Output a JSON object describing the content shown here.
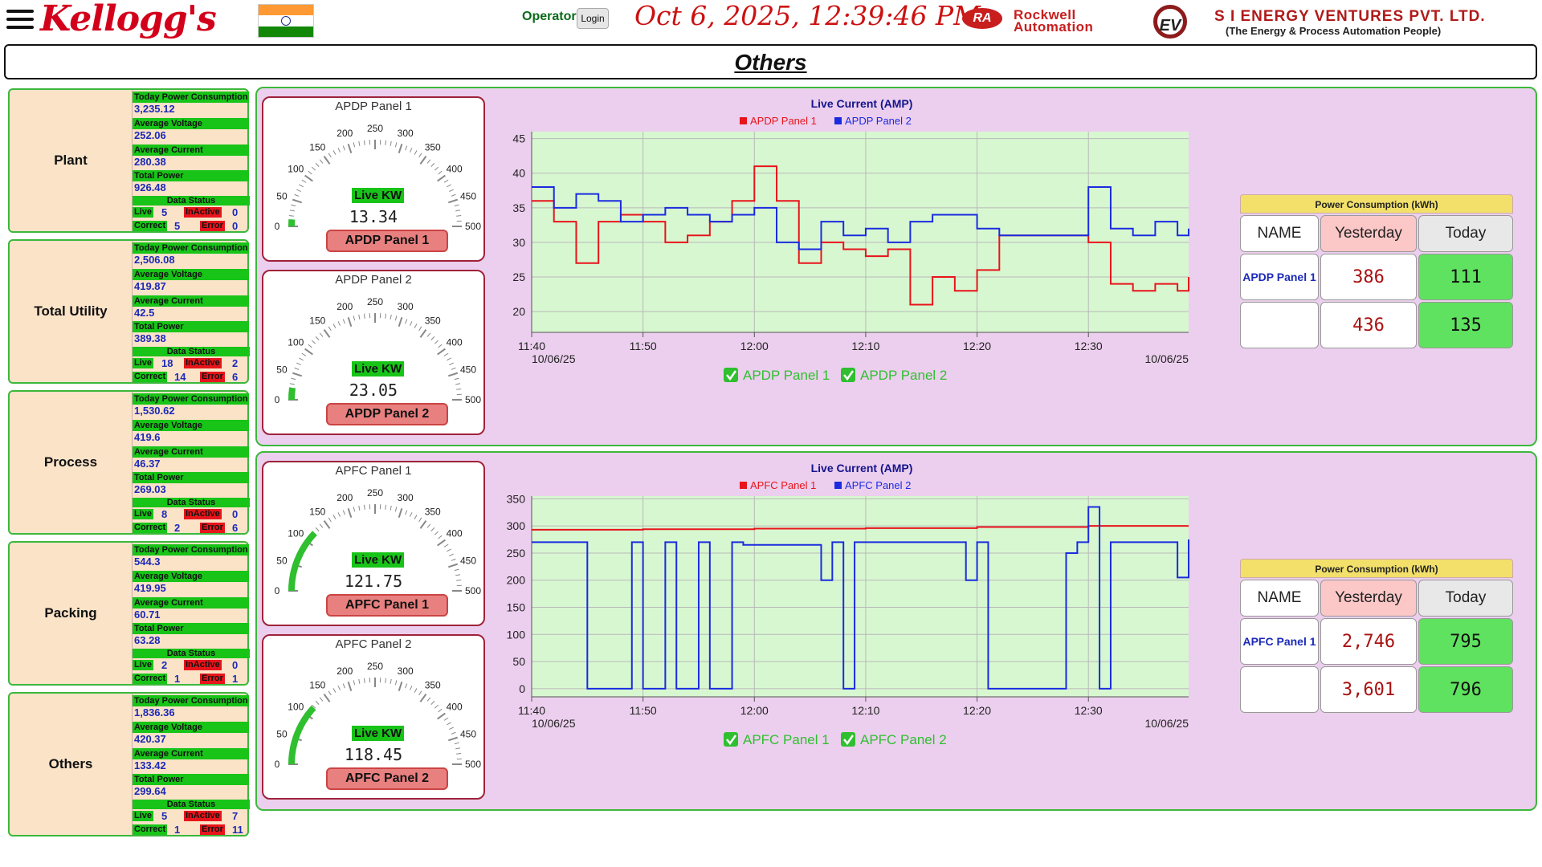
{
  "header": {
    "brand": "Kellogg's",
    "operator_label": "Operator",
    "login_label": "Login",
    "datetime": "Oct 6, 2025, 12:39:46 PM",
    "partner1_top": "Rockwell",
    "partner1_bottom": "Automation",
    "partner1_mark": "RA",
    "partner2_mark": "EV",
    "partner2_name": "S I ENERGY VENTURES PVT. LTD.",
    "partner2_tagline": "(The Energy & Process Automation People)"
  },
  "page_title": "Others",
  "summary_labels": {
    "consumption": "Today Power Consumption",
    "voltage": "Average Voltage",
    "current": "Average Current",
    "power": "Total Power",
    "status": "Data Status",
    "live": "Live",
    "inactive": "InActive",
    "correct": "Correct",
    "error": "Error"
  },
  "cards": [
    {
      "name": "Plant",
      "consumption": "3,235.12",
      "voltage": "252.06",
      "current": "280.38",
      "power": "926.48",
      "live": "5",
      "inactive": "0",
      "correct": "5",
      "error": "0"
    },
    {
      "name": "Total Utility",
      "consumption": "2,506.08",
      "voltage": "419.87",
      "current": "42.5",
      "power": "389.38",
      "live": "18",
      "inactive": "2",
      "correct": "14",
      "error": "6"
    },
    {
      "name": "Process",
      "consumption": "1,530.62",
      "voltage": "419.6",
      "current": "46.37",
      "power": "269.03",
      "live": "8",
      "inactive": "0",
      "correct": "2",
      "error": "6"
    },
    {
      "name": "Packing",
      "consumption": "544.3",
      "voltage": "419.95",
      "current": "60.71",
      "power": "63.28",
      "live": "2",
      "inactive": "0",
      "correct": "1",
      "error": "1"
    },
    {
      "name": "Others",
      "consumption": "1,836.36",
      "voltage": "420.37",
      "current": "133.42",
      "power": "299.64",
      "live": "5",
      "inactive": "7",
      "correct": "1",
      "error": "11"
    }
  ],
  "gauge_common": {
    "live_label": "Live KW",
    "ticks": [
      "0",
      "50",
      "100",
      "150",
      "200",
      "250",
      "300",
      "350",
      "400",
      "450",
      "500"
    ],
    "max": 500
  },
  "panels": [
    {
      "gauges": [
        {
          "title": "APDP Panel 1",
          "value": "13.34",
          "button": "APDP Panel 1"
        },
        {
          "title": "APDP Panel 2",
          "value": "23.05",
          "button": "APDP Panel 2"
        }
      ],
      "table": {
        "header": "Power Consumption (kWh)",
        "col_name": "NAME",
        "col_yesterday": "Yesterday",
        "col_today": "Today",
        "rows": [
          {
            "name": "APDP Panel 1",
            "yesterday": "386",
            "today": "111"
          },
          {
            "name": "",
            "yesterday": "436",
            "today": "135"
          }
        ]
      }
    },
    {
      "gauges": [
        {
          "title": "APFC Panel 1",
          "value": "121.75",
          "button": "APFC Panel 1"
        },
        {
          "title": "APFC Panel 2",
          "value": "118.45",
          "button": "APFC Panel 2"
        }
      ],
      "table": {
        "header": "Power Consumption (kWh)",
        "col_name": "NAME",
        "col_yesterday": "Yesterday",
        "col_today": "Today",
        "rows": [
          {
            "name": "APFC Panel 1",
            "yesterday": "2,746",
            "today": "795"
          },
          {
            "name": "",
            "yesterday": "3,601",
            "today": "796"
          }
        ]
      }
    }
  ],
  "chart_data": [
    {
      "type": "line",
      "title": "Live Current (AMP)",
      "x_ticks": [
        "11:40",
        "11:50",
        "12:00",
        "12:10",
        "12:20",
        "12:30"
      ],
      "x_date_left": "10/06/25",
      "x_date_right": "10/06/25",
      "xlim": [
        "11:40",
        "12:39"
      ],
      "ylim": [
        17,
        46
      ],
      "y_ticks": [
        20,
        25,
        30,
        35,
        40,
        45
      ],
      "grid": true,
      "legend": "top",
      "series": [
        {
          "name": "APDP Panel 1",
          "color": "#e8141b",
          "x": [
            "11:40",
            "11:42",
            "11:44",
            "11:46",
            "11:48",
            "11:50",
            "11:52",
            "11:54",
            "11:56",
            "11:58",
            "12:00",
            "12:02",
            "12:04",
            "12:06",
            "12:08",
            "12:10",
            "12:12",
            "12:14",
            "12:16",
            "12:18",
            "12:20",
            "12:22",
            "12:30",
            "12:32",
            "12:34",
            "12:36",
            "12:38",
            "12:39"
          ],
          "values": [
            36,
            33,
            27,
            33,
            34,
            33,
            30,
            31,
            33,
            36,
            41,
            36,
            27,
            30,
            29,
            28,
            29,
            21,
            25,
            23,
            26,
            31,
            30,
            24,
            23,
            24,
            23,
            25
          ]
        },
        {
          "name": "APDP Panel 2",
          "color": "#1a2be0",
          "x": [
            "11:40",
            "11:42",
            "11:44",
            "11:46",
            "11:48",
            "11:50",
            "11:52",
            "11:54",
            "11:56",
            "11:58",
            "12:00",
            "12:02",
            "12:04",
            "12:06",
            "12:08",
            "12:10",
            "12:12",
            "12:14",
            "12:16",
            "12:18",
            "12:20",
            "12:22",
            "12:30",
            "12:32",
            "12:34",
            "12:36",
            "12:38",
            "12:39"
          ],
          "values": [
            38,
            35,
            37,
            36,
            33,
            34,
            35,
            34,
            33,
            34,
            35,
            30,
            29,
            33,
            31,
            32,
            30,
            33,
            34,
            34,
            32,
            31,
            38,
            32,
            31,
            33,
            31,
            32
          ]
        }
      ],
      "checkboxes": [
        "APDP Panel 1",
        "APDP Panel 2"
      ]
    },
    {
      "type": "line",
      "title": "Live Current (AMP)",
      "x_ticks": [
        "11:40",
        "11:50",
        "12:00",
        "12:10",
        "12:20",
        "12:30"
      ],
      "x_date_left": "10/06/25",
      "x_date_right": "10/06/25",
      "xlim": [
        "11:40",
        "12:39"
      ],
      "ylim": [
        -15,
        355
      ],
      "y_ticks": [
        0,
        50,
        100,
        150,
        200,
        250,
        300,
        350
      ],
      "grid": true,
      "legend": "top",
      "series": [
        {
          "name": "APFC Panel 1",
          "color": "#e8141b",
          "x": [
            "11:40",
            "11:50",
            "12:00",
            "12:10",
            "12:20",
            "12:30",
            "12:39"
          ],
          "values": [
            293,
            294,
            295,
            296,
            298,
            300,
            300
          ]
        },
        {
          "name": "APFC Panel 2",
          "color": "#1a2be0",
          "x": [
            "11:40",
            "11:44",
            "11:45",
            "11:49",
            "11:50",
            "11:52",
            "11:53",
            "11:55",
            "11:56",
            "11:58",
            "11:59",
            "12:05",
            "12:06",
            "12:07",
            "12:08",
            "12:09",
            "12:10",
            "12:14",
            "12:16",
            "12:18",
            "12:19",
            "12:20",
            "12:21",
            "12:22",
            "12:28",
            "12:29",
            "12:30",
            "12:31",
            "12:32",
            "12:33",
            "12:36",
            "12:38",
            "12:39"
          ],
          "values": [
            270,
            270,
            0,
            270,
            0,
            270,
            0,
            270,
            0,
            270,
            265,
            265,
            200,
            270,
            0,
            270,
            270,
            270,
            270,
            270,
            200,
            270,
            0,
            0,
            250,
            270,
            335,
            0,
            270,
            270,
            270,
            205,
            275
          ]
        }
      ],
      "checkboxes": [
        "APFC Panel 1",
        "APFC Panel 2"
      ]
    }
  ],
  "colors": {
    "accent_green": "#18c418",
    "panel_bg": "#eccfee",
    "plot_bg": "#d7f7d0",
    "series_red": "#e8141b",
    "series_blue": "#1a2be0",
    "error_red": "#e8141b"
  }
}
